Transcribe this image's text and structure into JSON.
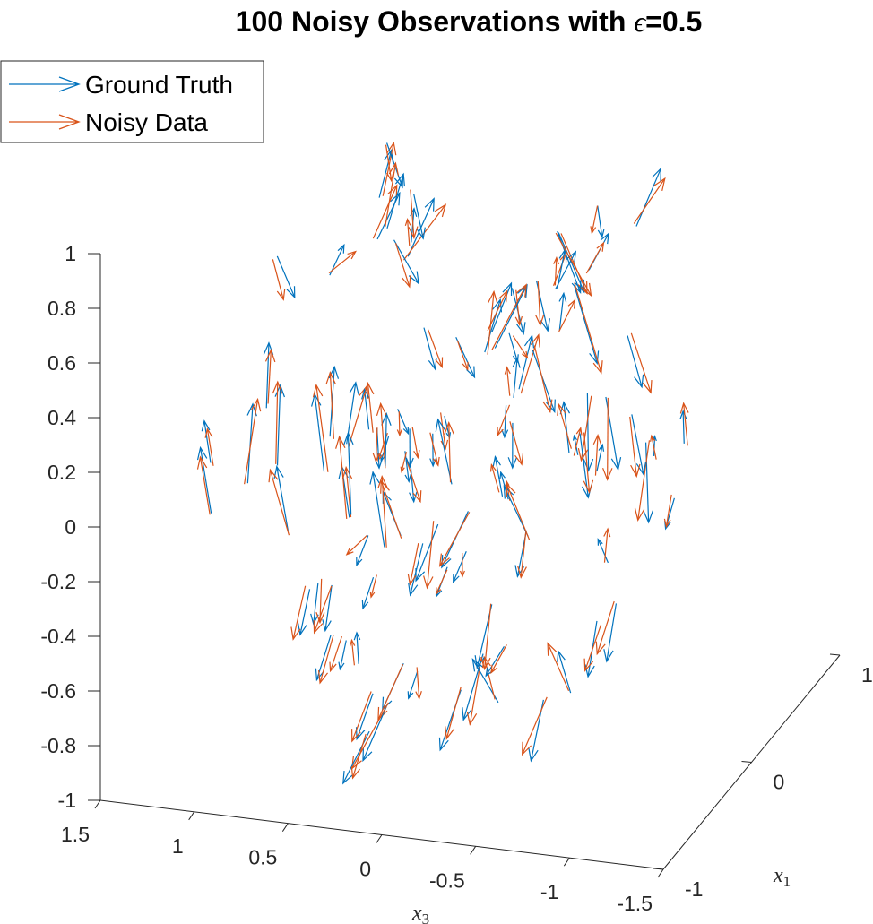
{
  "chart_data": {
    "type": "quiver3d",
    "title_prefix": "100 Noisy Observations with ",
    "title_symbol": "ϵ",
    "title_suffix": "=0.5",
    "axes": {
      "z": {
        "ticks": [
          "1",
          "0.8",
          "0.6",
          "0.4",
          "0.2",
          "0",
          "-0.2",
          "-0.4",
          "-0.6",
          "-0.8",
          "-1"
        ],
        "range": [
          -1,
          1
        ]
      },
      "x3": {
        "label_var": "x",
        "label_sub": "3",
        "ticks": [
          "1.5",
          "1",
          "0.5",
          "0",
          "-0.5",
          "-1",
          "-1.5"
        ],
        "range": [
          -1.5,
          1.5
        ]
      },
      "x1": {
        "label_var": "x",
        "label_sub": "1",
        "ticks": [
          "1",
          "0",
          "-1"
        ],
        "range": [
          -1,
          1
        ]
      }
    },
    "legend": {
      "location": "top-left",
      "entries": [
        {
          "label": "Ground Truth",
          "color": "#0072BD"
        },
        {
          "label": "Noisy Data",
          "color": "#D95319"
        }
      ]
    },
    "grid": false,
    "n_observations": 100,
    "noise_epsilon": 0.5
  }
}
